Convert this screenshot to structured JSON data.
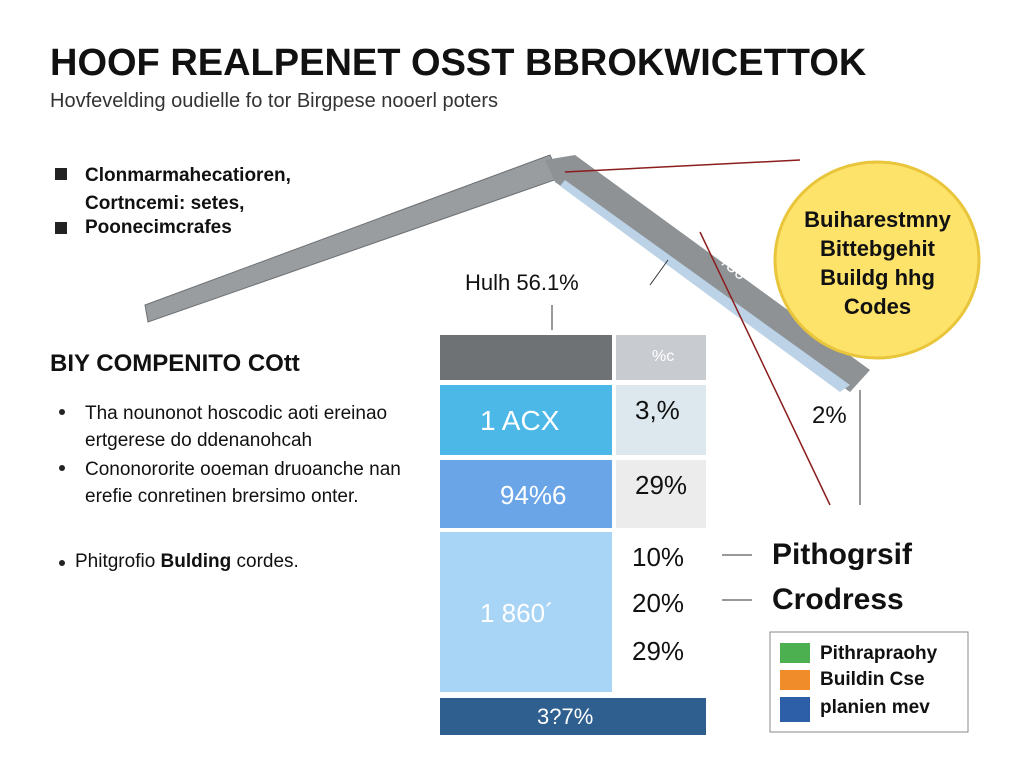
{
  "header": {
    "title": "HOOF REALPENET OSST BBROKWICETTOK",
    "subtitle": "Hovfevelding oudielle fo tor Birgpese nooerl poters"
  },
  "legend_top": [
    "Clonmarmahecatioren, Cortncemi: setes,",
    "Poonecimcrafes"
  ],
  "roof": {
    "label": "Hulh 56.1%",
    "angle_label": "/56",
    "right_label": "2%"
  },
  "callout": [
    "Buiharestmny",
    "Bittebgehit",
    "Buildg hhg",
    "Codes"
  ],
  "section": {
    "heading": "BIY COMPENITO COtt",
    "bullets": [
      [
        "Tha nounonot hoscodic aoti ereinao ertgerese do ddenanohcah"
      ],
      [
        "Cononororite ooeman druoanche nan erefie conretinen brersimo onter."
      ],
      [
        "Phitgrofio ",
        "Bulding",
        " cordes."
      ]
    ]
  },
  "table": {
    "header": "%c",
    "rows": [
      [
        "1 ACX",
        "3,%"
      ],
      [
        "94%6",
        "29%"
      ],
      [
        "1 860´",
        "10%",
        "20%",
        "29%"
      ]
    ],
    "footer": "3?7%"
  },
  "legend_right": [
    "Pithogrsif",
    "Crodress"
  ],
  "legend_box": [
    "Pithrapraohy",
    "Buildin Cse",
    "planien mev"
  ]
}
